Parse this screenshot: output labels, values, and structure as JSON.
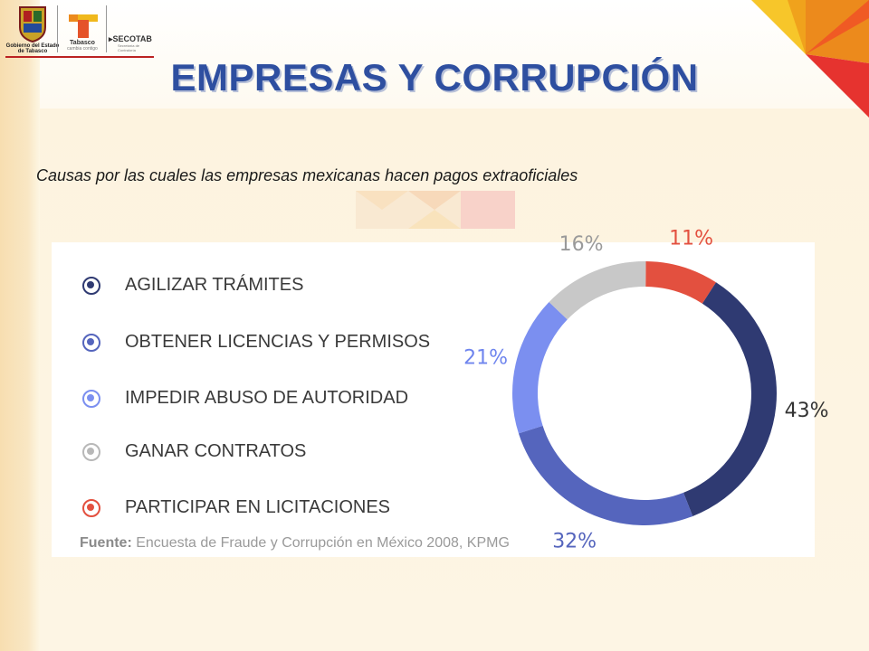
{
  "header": {
    "logo_gov_caption": "Gobierno del Estado de Tabasco",
    "logo_tabasco": "Tabasco",
    "logo_tabasco_sub": "cambia contigo",
    "logo_secotab": "SECOTAB",
    "logo_secotab_sub": "Secretaría de Contraloría"
  },
  "title": "EMPRESAS Y CORRUPCIÓN",
  "subtitle": "Causas por las cuales las empresas mexicanas hacen pagos extraoficiales",
  "source": {
    "label": "Fuente:",
    "text": "Encuesta de Fraude y Corrupción en México 2008, KPMG"
  },
  "colors": {
    "title": "#2e4fa0",
    "accent_red": "#e3503f",
    "accent_yellow": "#f7c62a",
    "accent_orange": "#ec8a1c"
  },
  "chart_data": {
    "type": "pie",
    "style": "donut",
    "categories": [
      "AGILIZAR TRÁMITES",
      "OBTENER LICENCIAS Y PERMISOS",
      "IMPEDIR ABUSO DE AUTORIDAD",
      "GANAR CONTRATOS",
      "PARTICIPAR EN LICITACIONES"
    ],
    "values": [
      43,
      32,
      21,
      16,
      11
    ],
    "labels": [
      "43%",
      "32%",
      "21%",
      "16%",
      "11%"
    ],
    "colors": [
      "#2f3a72",
      "#5565bd",
      "#7b8ff0",
      "#c8c8c8",
      "#e3503f"
    ],
    "label_colors": [
      "#333333",
      "#5565bd",
      "#6f85ee",
      "#9a9a9a",
      "#e3503f"
    ],
    "legend_position": "left"
  }
}
